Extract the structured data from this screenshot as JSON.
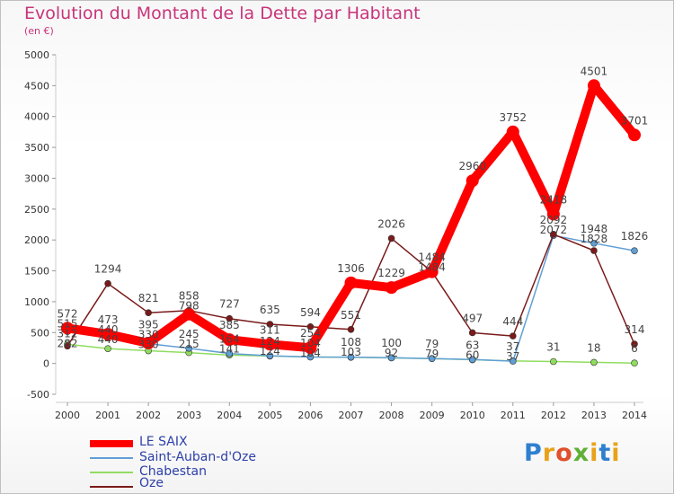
{
  "title": "Evolution du Montant de la Dette par Habitant",
  "subtitle": "(en €)",
  "logo_text": "Proxiti",
  "chart_data": {
    "type": "line",
    "title": "Evolution du Montant de la Dette par Habitant",
    "ylabel": "(en €)",
    "x": [
      2000,
      2001,
      2002,
      2003,
      2004,
      2005,
      2006,
      2007,
      2008,
      2009,
      2010,
      2011,
      2012,
      2013,
      2014
    ],
    "ylim": [
      -500,
      5000
    ],
    "yticks": [
      -500,
      0,
      500,
      1000,
      1500,
      2000,
      2500,
      3000,
      3500,
      4000,
      4500,
      5000
    ],
    "grid": false,
    "legend_position": "bottom-left",
    "series": [
      {
        "name": "LE SAIX",
        "color": "#ff0000",
        "values": [
          572,
          473,
          330,
          798,
          385,
          311,
          254,
          1306,
          1229,
          1484,
          2960,
          3752,
          2418,
          4501,
          3701
        ]
      },
      {
        "name": "Saint-Auban-d'Oze",
        "color": "#5f9fd6",
        "values": [
          515,
          440,
          320,
          245,
          160,
          124,
          104,
          103,
          92,
          79,
          63,
          37,
          2072,
          1948,
          1826
        ]
      },
      {
        "name": "Chabestan",
        "color": "#90dc60",
        "values": [
          312,
          240,
          205,
          175,
          135,
          120,
          105,
          100,
          90,
          79,
          60,
          40,
          31,
          18,
          6
        ]
      },
      {
        "name": "Oze",
        "color": "#7a1a1a",
        "values": [
          282,
          1294,
          821,
          858,
          727,
          635,
          594,
          551,
          2026,
          1484,
          497,
          444,
          2092,
          1828,
          314
        ]
      }
    ],
    "data_labels": [
      {
        "year": 2000,
        "values": [
          572,
          515,
          312,
          282
        ]
      },
      {
        "year": 2001,
        "values": [
          473,
          440,
          440,
          1294
        ]
      },
      {
        "year": 2002,
        "values": [
          395,
          330,
          330,
          821
        ]
      },
      {
        "year": 2003,
        "values": [
          858,
          798,
          245,
          215
        ]
      },
      {
        "year": 2004,
        "values": [
          727,
          385,
          164,
          141
        ]
      },
      {
        "year": 2005,
        "values": [
          635,
          311,
          124,
          124
        ]
      },
      {
        "year": 2006,
        "values": [
          594,
          254,
          104,
          104
        ]
      },
      {
        "year": 2007,
        "values": [
          1306,
          551,
          108,
          103
        ]
      },
      {
        "year": 2008,
        "values": [
          2026,
          1229,
          100,
          92
        ]
      },
      {
        "year": 2009,
        "values": [
          1484,
          1484,
          79,
          79
        ]
      },
      {
        "year": 2010,
        "values": [
          2960,
          497,
          63,
          60
        ]
      },
      {
        "year": 2011,
        "values": [
          3752,
          444,
          37,
          37
        ]
      },
      {
        "year": 2012,
        "values": [
          2418,
          2092,
          2072,
          31
        ]
      },
      {
        "year": 2013,
        "values": [
          4501,
          1948,
          1828,
          18
        ]
      },
      {
        "year": 2014,
        "values": [
          3701,
          1826,
          314,
          6
        ]
      }
    ]
  }
}
